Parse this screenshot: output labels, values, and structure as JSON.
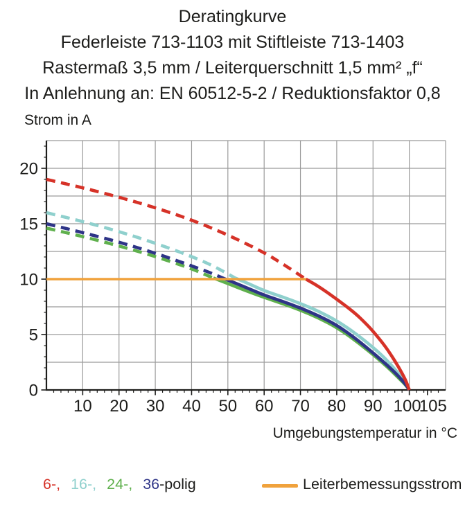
{
  "figure": {
    "title_lines": [
      "Deratingkurve",
      "Federleiste 713-1103 mit Stiftleiste 713-1403",
      "Rastermaß 3,5 mm / Leiterquerschnitt 1,5 mm² „f“",
      "In Anlehnung an: EN 60512-5-2 / Reduktionsfaktor 0,8"
    ]
  },
  "axes": {
    "y_title": "Strom in A",
    "x_title": "Umgebungstemperatur in °C"
  },
  "legend": {
    "series_items": [
      {
        "text": "6-,",
        "color": "#d63228"
      },
      {
        "text": "16-,",
        "color": "#8fd0cd"
      },
      {
        "text": "24-,",
        "color": "#5fb04d"
      },
      {
        "text": "36",
        "color": "#2e3487"
      },
      {
        "text": "-polig",
        "color": "#1d1d1b"
      }
    ],
    "rated": {
      "label": "Leiterbemessungsstrom",
      "color": "#f0a23c"
    }
  },
  "chart_data": {
    "type": "line",
    "title": "Deratingkurve",
    "xlabel": "Umgebungstemperatur in °C",
    "ylabel": "Strom in A",
    "xlim": [
      0,
      110
    ],
    "ylim": [
      0,
      22.5
    ],
    "x_tick_labels": [
      10,
      20,
      30,
      40,
      50,
      60,
      70,
      80,
      90,
      100,
      105
    ],
    "y_tick_labels": [
      0,
      5,
      10,
      15,
      20
    ],
    "x_minor_step": 2,
    "y_minor_step": 1,
    "grid_step_x": 10,
    "grid_step_y": 2.5,
    "grid_on": true,
    "grid_color": "#9b9b9b",
    "axis_color": "#1d1d1b",
    "dash_pattern": "13 8.5",
    "note": "dashed = derated current above rated current (10 A); solid = below rated current",
    "series": [
      {
        "name": "6-polig",
        "color": "#d63228",
        "width": 4.6,
        "dashed_points": [
          [
            0,
            19
          ],
          [
            10,
            18.25
          ],
          [
            20,
            17.4
          ],
          [
            30,
            16.45
          ],
          [
            40,
            15.35
          ],
          [
            50,
            14.0
          ],
          [
            60,
            12.4
          ],
          [
            65,
            11.4
          ],
          [
            71.5,
            10.0
          ]
        ],
        "solid_points": [
          [
            71.5,
            10.0
          ],
          [
            75,
            9.35
          ],
          [
            80,
            8.2
          ],
          [
            85,
            6.95
          ],
          [
            88,
            6.0
          ],
          [
            90,
            5.3
          ],
          [
            93,
            4.1
          ],
          [
            95,
            3.15
          ],
          [
            97,
            2.1
          ],
          [
            99,
            0.9
          ],
          [
            100,
            0
          ]
        ]
      },
      {
        "name": "16-polig",
        "color": "#8fd0cd",
        "width": 4.6,
        "dashed_points": [
          [
            0,
            16
          ],
          [
            10,
            15.2
          ],
          [
            20,
            14.3
          ],
          [
            30,
            13.25
          ],
          [
            40,
            12.05
          ],
          [
            46,
            11.2
          ],
          [
            52,
            10.1
          ]
        ],
        "solid_points": [
          [
            52,
            10.1
          ],
          [
            56,
            9.55
          ],
          [
            60,
            8.95
          ],
          [
            65,
            8.4
          ],
          [
            70,
            7.8
          ],
          [
            75,
            7.1
          ],
          [
            80,
            6.25
          ],
          [
            85,
            5.15
          ],
          [
            90,
            3.85
          ],
          [
            93,
            2.95
          ],
          [
            95,
            2.25
          ],
          [
            97,
            1.5
          ],
          [
            99,
            0.65
          ],
          [
            100,
            0
          ]
        ]
      },
      {
        "name": "24-polig",
        "color": "#5fb04d",
        "width": 4.6,
        "dashed_points": [
          [
            0,
            14.6
          ],
          [
            10,
            13.85
          ],
          [
            20,
            13.0
          ],
          [
            30,
            12.05
          ],
          [
            40,
            10.95
          ],
          [
            46,
            10.1
          ]
        ],
        "solid_points": [
          [
            46,
            10.1
          ],
          [
            50,
            9.6
          ],
          [
            55,
            8.95
          ],
          [
            60,
            8.35
          ],
          [
            65,
            7.8
          ],
          [
            70,
            7.2
          ],
          [
            75,
            6.5
          ],
          [
            80,
            5.65
          ],
          [
            85,
            4.5
          ],
          [
            90,
            3.2
          ],
          [
            93,
            2.35
          ],
          [
            95,
            1.75
          ],
          [
            97,
            1.1
          ],
          [
            99,
            0.45
          ],
          [
            100,
            0
          ]
        ]
      },
      {
        "name": "36-polig",
        "color": "#2e3487",
        "width": 4.6,
        "dashed_points": [
          [
            0,
            15
          ],
          [
            10,
            14.2
          ],
          [
            20,
            13.35
          ],
          [
            30,
            12.35
          ],
          [
            40,
            11.2
          ],
          [
            45,
            10.6
          ],
          [
            49,
            10.05
          ]
        ],
        "solid_points": [
          [
            49,
            10.05
          ],
          [
            55,
            9.25
          ],
          [
            60,
            8.55
          ],
          [
            65,
            8.0
          ],
          [
            70,
            7.4
          ],
          [
            75,
            6.7
          ],
          [
            80,
            5.85
          ],
          [
            85,
            4.7
          ],
          [
            90,
            3.35
          ],
          [
            93,
            2.5
          ],
          [
            95,
            1.9
          ],
          [
            97,
            1.25
          ],
          [
            99,
            0.5
          ],
          [
            100,
            0
          ]
        ]
      },
      {
        "name": "Leiterbemessungsstrom",
        "color": "#f0a23c",
        "width": 3.5,
        "solid_points": [
          [
            0,
            10
          ],
          [
            71.5,
            10
          ]
        ]
      }
    ]
  }
}
